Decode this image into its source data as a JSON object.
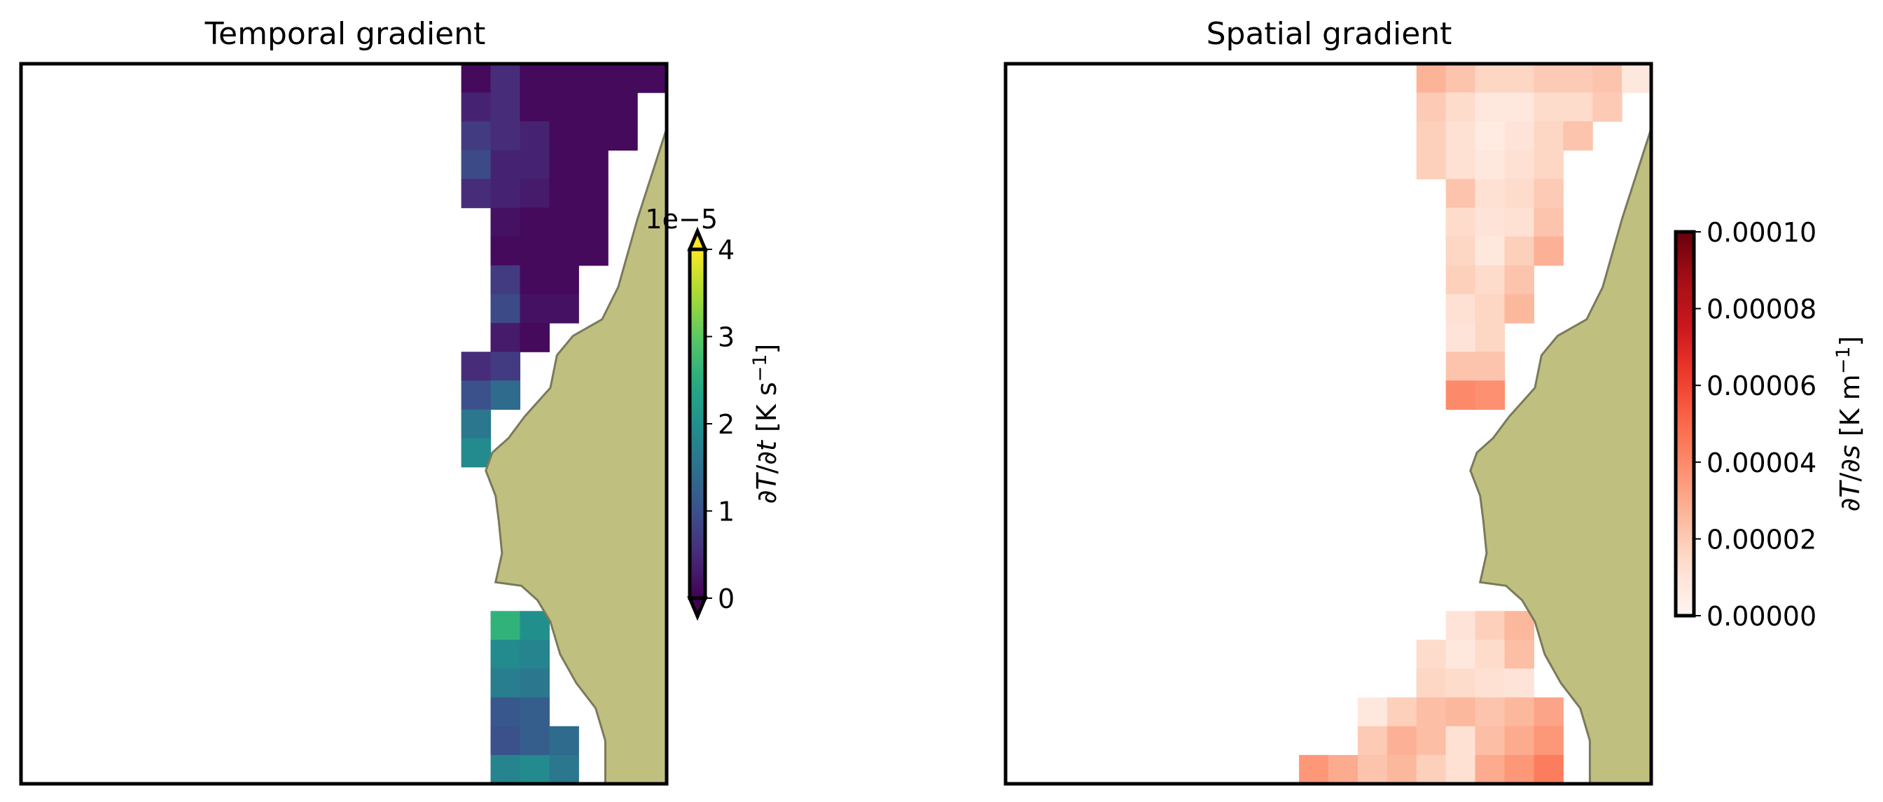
{
  "chart_data": [
    {
      "type": "heatmap",
      "title": "Temporal gradient",
      "colormap": "viridis",
      "colorbar": {
        "label": "∂T/∂t [K s⁻¹]",
        "label_parts": [
          "∂",
          "T",
          "/∂",
          "t",
          " [K s",
          "−1",
          "]"
        ],
        "ticks": [
          "0",
          "1",
          "2",
          "3",
          "4"
        ],
        "tick_values": [
          0,
          1,
          2,
          3,
          4
        ],
        "offset": "1e−5",
        "range": [
          0,
          4
        ],
        "extend": "both"
      },
      "grid_cols": 22,
      "grid_rows": 25,
      "values_units": "×1e-5 K s⁻¹",
      "rows": [
        {
          "row": 0,
          "start": 15,
          "values": [
            0.1,
            0.5,
            0.1,
            0.1,
            0.1,
            0.1,
            0.1
          ]
        },
        {
          "row": 1,
          "start": 15,
          "values": [
            0.4,
            0.5,
            0.1,
            0.1,
            0.1,
            0.1
          ]
        },
        {
          "row": 2,
          "start": 15,
          "values": [
            0.7,
            0.5,
            0.4,
            0.1,
            0.1,
            0.1
          ]
        },
        {
          "row": 3,
          "start": 15,
          "values": [
            0.9,
            0.4,
            0.4,
            0.1,
            0.1
          ]
        },
        {
          "row": 4,
          "start": 15,
          "values": [
            0.5,
            0.4,
            0.3,
            0.1,
            0.1
          ]
        },
        {
          "row": 5,
          "start": 16,
          "values": [
            0.2,
            0.1,
            0.1,
            0.1
          ]
        },
        {
          "row": 6,
          "start": 16,
          "values": [
            0.1,
            0.1,
            0.1,
            0.1
          ]
        },
        {
          "row": 7,
          "start": 16,
          "values": [
            0.7,
            0.1,
            0.1
          ]
        },
        {
          "row": 8,
          "start": 16,
          "values": [
            0.9,
            0.2,
            0.2
          ]
        },
        {
          "row": 9,
          "start": 16,
          "values": [
            0.3,
            0.1
          ]
        },
        {
          "row": 10,
          "start": 15,
          "values": [
            0.5,
            0.7
          ]
        },
        {
          "row": 11,
          "start": 15,
          "values": [
            1.0,
            1.4
          ]
        },
        {
          "row": 12,
          "start": 15,
          "values": [
            1.6
          ]
        },
        {
          "row": 13,
          "start": 15,
          "values": [
            1.9
          ]
        },
        {
          "row": 19,
          "start": 16,
          "values": [
            2.6,
            2.0
          ]
        },
        {
          "row": 20,
          "start": 16,
          "values": [
            1.9,
            1.8
          ]
        },
        {
          "row": 21,
          "start": 16,
          "values": [
            1.7,
            1.6
          ]
        },
        {
          "row": 22,
          "start": 16,
          "values": [
            1.1,
            1.2
          ]
        },
        {
          "row": 23,
          "start": 16,
          "values": [
            1.0,
            1.2,
            1.4
          ]
        },
        {
          "row": 24,
          "start": 16,
          "values": [
            1.8,
            1.9,
            1.6
          ]
        }
      ]
    },
    {
      "type": "heatmap",
      "title": "Spatial gradient",
      "colormap": "Reds",
      "colorbar": {
        "label": "∂T/∂s [K m⁻¹]",
        "label_parts": [
          "∂",
          "T",
          "/∂",
          "s",
          " [K m",
          "−1",
          "]"
        ],
        "ticks": [
          "0.00000",
          "0.00002",
          "0.00004",
          "0.00006",
          "0.00008",
          "0.00010"
        ],
        "tick_values": [
          0,
          2e-05,
          4e-05,
          6e-05,
          8e-05,
          0.0001
        ],
        "range": [
          0,
          0.0001
        ],
        "extend": "neither"
      },
      "grid_cols": 22,
      "grid_rows": 25,
      "values_units": "K m⁻¹",
      "rows": [
        {
          "row": 0,
          "start": 14,
          "values": [
            2.7e-05,
            2.2e-05,
            1.6e-05,
            1.6e-05,
            2e-05,
            2e-05,
            2.2e-05,
            8e-06
          ]
        },
        {
          "row": 1,
          "start": 14,
          "values": [
            2e-05,
            1.4e-05,
            8e-06,
            8e-06,
            1.4e-05,
            1.4e-05,
            2e-05
          ]
        },
        {
          "row": 2,
          "start": 14,
          "values": [
            1.8e-05,
            1.2e-05,
            6e-06,
            1e-05,
            1.6e-05,
            2.2e-05
          ]
        },
        {
          "row": 3,
          "start": 14,
          "values": [
            1.8e-05,
            1.2e-05,
            8e-06,
            1.2e-05,
            1.6e-05
          ]
        },
        {
          "row": 4,
          "start": 15,
          "values": [
            2.2e-05,
            1.2e-05,
            1.4e-05,
            2e-05
          ]
        },
        {
          "row": 5,
          "start": 15,
          "values": [
            1.4e-05,
            1e-05,
            1.2e-05,
            2.2e-05
          ]
        },
        {
          "row": 6,
          "start": 15,
          "values": [
            1.6e-05,
            8e-06,
            1.8e-05,
            2.8e-05
          ]
        },
        {
          "row": 7,
          "start": 15,
          "values": [
            1.8e-05,
            1.4e-05,
            2.2e-05
          ]
        },
        {
          "row": 8,
          "start": 15,
          "values": [
            1.2e-05,
            1.6e-05,
            2.6e-05
          ]
        },
        {
          "row": 9,
          "start": 15,
          "values": [
            1e-05,
            1.6e-05
          ]
        },
        {
          "row": 10,
          "start": 15,
          "values": [
            2.2e-05,
            2.2e-05
          ]
        },
        {
          "row": 11,
          "start": 15,
          "values": [
            4e-05,
            3.8e-05
          ]
        },
        {
          "row": 19,
          "start": 15,
          "values": [
            1e-05,
            1.8e-05,
            2.6e-05
          ]
        },
        {
          "row": 20,
          "start": 14,
          "values": [
            1.4e-05,
            8e-06,
            1.4e-05,
            2.4e-05
          ]
        },
        {
          "row": 21,
          "start": 14,
          "values": [
            1.6e-05,
            1.4e-05,
            1.2e-05,
            1e-05
          ]
        },
        {
          "row": 22,
          "start": 12,
          "values": [
            8e-06,
            1.8e-05,
            2.4e-05,
            2.6e-05,
            2.2e-05,
            2.6e-05,
            3.2e-05
          ]
        },
        {
          "row": 23,
          "start": 12,
          "values": [
            2e-05,
            2.8e-05,
            2.4e-05,
            1.2e-05,
            2.4e-05,
            3e-05,
            3.6e-05
          ]
        },
        {
          "row": 24,
          "start": 10,
          "values": [
            3.6e-05,
            3e-05,
            2.2e-05,
            2.6e-05,
            1.8e-05,
            1.2e-05,
            3e-05,
            3.6e-05,
            4.4e-05
          ]
        }
      ]
    }
  ],
  "colors": {
    "land": "#bfbf80",
    "coastline": "#7a7a5a",
    "frame": "#000000"
  }
}
